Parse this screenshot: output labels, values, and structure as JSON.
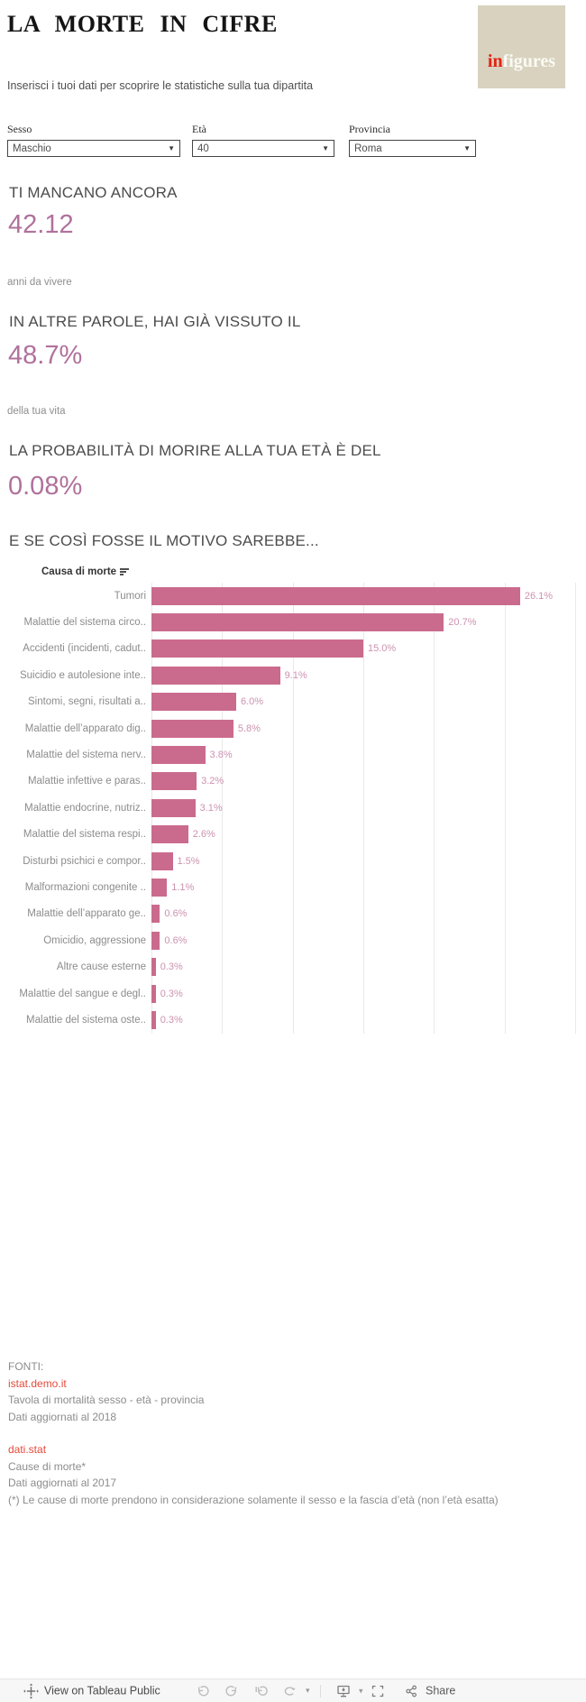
{
  "header": {
    "title": "LA MORTE IN CIFRE",
    "logo": {
      "part1": "in",
      "part2": "figures",
      "bg_color": "#d8d2bf",
      "part1_color": "#e42313",
      "part2_color": "#fbfbf4"
    },
    "subtitle": "Inserisci i tuoi dati per scoprire le statistiche sulla tua dipartita"
  },
  "filters": [
    {
      "label": "Sesso",
      "value": "Maschio"
    },
    {
      "label": "Età",
      "value": "40"
    },
    {
      "label": "Provincia",
      "value": "Roma"
    }
  ],
  "stats": [
    {
      "heading": "TI MANCANO ANCORA",
      "value": "42.12",
      "caption": "anni da vivere"
    },
    {
      "heading": "IN ALTRE PAROLE, HAI GIÀ VISSUTO IL",
      "value": "48.7%",
      "caption": "della tua vita"
    },
    {
      "heading": "LA PROBABILITÀ DI MORIRE ALLA TUA ETÀ È DEL",
      "value": "0.08%",
      "caption": ""
    }
  ],
  "accent_color": "#b0719c",
  "chart_section": {
    "heading": "E SE COSÌ FOSSE IL MOTIVO SAREBBE..."
  },
  "chart_data": {
    "type": "bar",
    "orientation": "horizontal",
    "axis_label": "Causa di morte",
    "sorted": "descending",
    "categories": [
      "Tumori",
      "Malattie del sistema circo..",
      "Accidenti (incidenti, cadut..",
      "Suicidio e autolesione inte..",
      "Sintomi, segni, risultati a..",
      "Malattie dell’apparato dig..",
      "Malattie del sistema nerv..",
      "Malattie infettive e paras..",
      "Malattie endocrine, nutriz..",
      "Malattie del sistema respi..",
      "Disturbi psichici e compor..",
      "Malformazioni congenite ..",
      "Malattie dell’apparato ge..",
      "Omicidio, aggressione",
      "Altre cause esterne",
      "Malattie del sangue e degl..",
      "Malattie del sistema oste.."
    ],
    "values": [
      26.1,
      20.7,
      15.0,
      9.1,
      6.0,
      5.8,
      3.8,
      3.2,
      3.1,
      2.6,
      1.5,
      1.1,
      0.6,
      0.6,
      0.3,
      0.3,
      0.3
    ],
    "value_labels": [
      "26.1%",
      "20.7%",
      "15.0%",
      "9.1%",
      "6.0%",
      "5.8%",
      "3.8%",
      "3.2%",
      "3.1%",
      "2.6%",
      "1.5%",
      "1.1%",
      "0.6%",
      "0.6%",
      "0.3%",
      "0.3%",
      "0.3%"
    ],
    "xlim": [
      0,
      30
    ],
    "gridline_step_pct": 5,
    "grid": true,
    "bar_color": "#ca6b8d",
    "value_label_color": "#cc92b0"
  },
  "footer": {
    "heading": "FONTI:",
    "sources": [
      {
        "link": "istat.demo.it",
        "line1": "Tavola di mortalità sesso - età - provincia",
        "line2": "Dati aggiornati al 2018"
      },
      {
        "link": "dati.stat",
        "line1": "Cause di morte*",
        "line2": "Dati aggiornati al 2017",
        "note": "(*) Le cause di morte prendono in considerazione solamente il sesso e la fascia d’età (non l’età esatta)"
      }
    ]
  },
  "toolbar": {
    "view_label": "View on Tableau Public",
    "share_label": "Share"
  }
}
